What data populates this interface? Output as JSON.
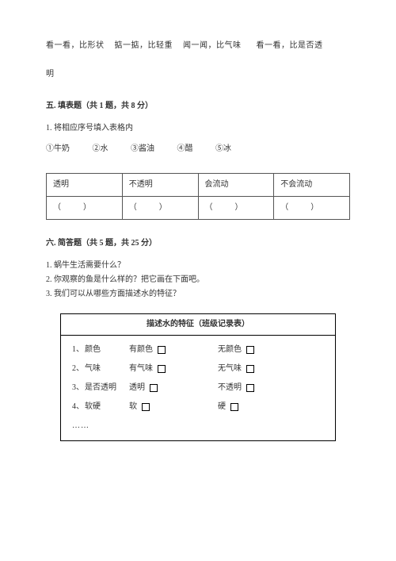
{
  "intro": {
    "p1": "看一看，比形状",
    "p2": "掂一掂，比轻重",
    "p3": "闻一闻，比气味",
    "p4": "看一看，比是否透",
    "p5": "明"
  },
  "section5": {
    "title": "五. 填表题（共 1 题，共 8 分）",
    "q1": "1. 将相应序号填入表格内",
    "choices": [
      "①牛奶",
      "②水",
      "③酱油",
      "④醋",
      "⑤冰"
    ],
    "table_headers": [
      "透明",
      "不透明",
      "会流动",
      "不会流动"
    ]
  },
  "section6": {
    "title": "六. 简答题（共 5 题，共 25 分）",
    "q1": "1. 蜗牛生活需要什么？",
    "q2": "2. 你观察的鱼是什么样的？把它画在下面吧。",
    "q3": "3. 我们可以从哪些方面描述水的特征？"
  },
  "record": {
    "title": "描述水的特征（班级记录表）",
    "rows": [
      {
        "num": "1、",
        "label": "颜色",
        "opt1": "有颜色",
        "opt2": "无颜色"
      },
      {
        "num": "2、",
        "label": "气味",
        "opt1": "有气味",
        "opt2": "无气味"
      },
      {
        "num": "3、",
        "label": "是否透明",
        "opt1": "透明",
        "opt2": "不透明"
      },
      {
        "num": "4、",
        "label": "软硬",
        "opt1": "软",
        "opt2": "硬"
      }
    ],
    "dots": "……"
  },
  "paren": {
    "open": "（",
    "close": "）"
  }
}
